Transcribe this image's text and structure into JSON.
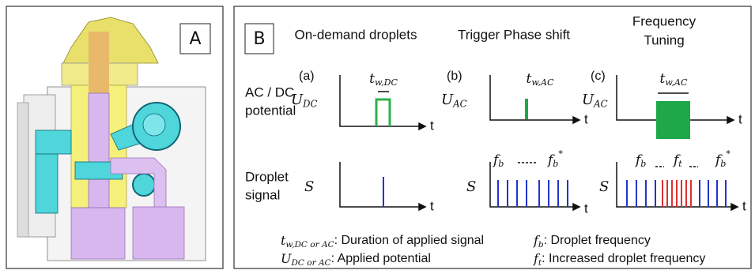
{
  "panel_a": {
    "label": "A"
  },
  "panel_b": {
    "label": "B",
    "columns": [
      [
        "On-demand droplets"
      ],
      [
        "Trigger Phase shift"
      ],
      [
        "Frequency",
        "Tuning"
      ]
    ],
    "row_labels": [
      [
        "AC / DC",
        "potential"
      ],
      [
        "Droplet",
        "signal"
      ]
    ],
    "subplot_labels": [
      "(a)",
      "(b)",
      "(c)"
    ],
    "time_axis": "t",
    "u_dc": {
      "symbol": "U",
      "subscript": "DC"
    },
    "u_ac": {
      "symbol": "U",
      "subscript": "AC"
    },
    "tw_dc": {
      "symbol": "t",
      "subscript": "w,DC"
    },
    "tw_ac": {
      "symbol": "t",
      "subscript": "w,AC"
    },
    "signal": "S",
    "fb": {
      "symbol": "f",
      "subscript": "b"
    },
    "fb_star": {
      "symbol": "f",
      "subscript": "b",
      "superscript": "*"
    },
    "ft": {
      "symbol": "f",
      "subscript": "t"
    },
    "legend": [
      {
        "symbol": "t",
        "subscript": "w,DC or AC",
        "text": ": Duration of applied signal"
      },
      {
        "symbol": "U",
        "subscript": "DC or AC",
        "text": ": Applied potential"
      },
      {
        "symbol": "f",
        "subscript": "b",
        "text": ": Droplet frequency"
      },
      {
        "symbol": "f",
        "subscript": "t",
        "text": ": Increased droplet frequency"
      }
    ]
  }
}
